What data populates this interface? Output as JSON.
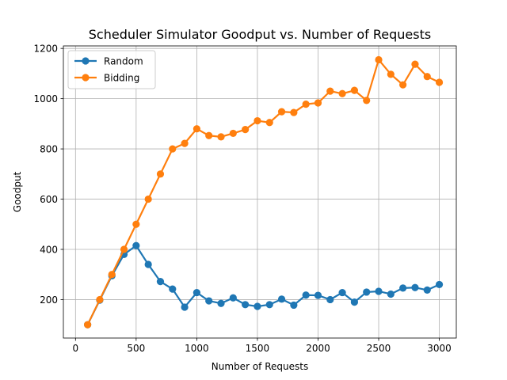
{
  "chart_data": {
    "type": "line",
    "title": "Scheduler Simulator Goodput vs. Number of Requests",
    "xlabel": "Number of Requests",
    "ylabel": "Goodput",
    "xlim": [
      -100,
      3140
    ],
    "ylim": [
      47,
      1210
    ],
    "xticks": [
      0,
      500,
      1000,
      1500,
      2000,
      2500,
      3000
    ],
    "yticks": [
      200,
      400,
      600,
      800,
      1000,
      1200
    ],
    "grid": true,
    "legend_position": "upper-left",
    "x": [
      100,
      200,
      300,
      400,
      500,
      600,
      700,
      800,
      900,
      1000,
      1100,
      1200,
      1300,
      1400,
      1500,
      1600,
      1700,
      1800,
      1900,
      2000,
      2100,
      2200,
      2300,
      2400,
      2500,
      2600,
      2700,
      2800,
      2900,
      3000
    ],
    "series": [
      {
        "name": "Random",
        "color": "#1f77b4",
        "values": [
          100,
          198,
          295,
          380,
          415,
          340,
          272,
          242,
          170,
          228,
          195,
          185,
          207,
          180,
          173,
          180,
          202,
          178,
          218,
          217,
          200,
          228,
          190,
          230,
          233,
          222,
          246,
          248,
          238,
          260
        ]
      },
      {
        "name": "Bidding",
        "color": "#ff7f0e",
        "values": [
          100,
          200,
          300,
          400,
          500,
          600,
          700,
          800,
          822,
          880,
          853,
          848,
          862,
          877,
          912,
          905,
          948,
          945,
          978,
          983,
          1030,
          1020,
          1033,
          993,
          1155,
          1097,
          1055,
          1137,
          1088,
          1065
        ]
      }
    ]
  }
}
